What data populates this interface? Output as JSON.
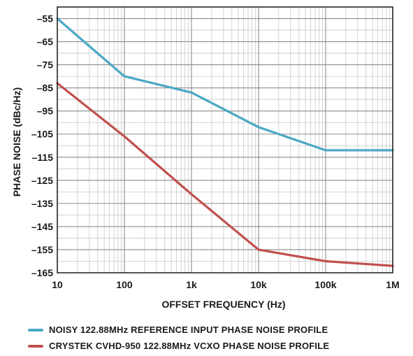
{
  "chart_data": {
    "type": "line",
    "xscale": "log",
    "xlabel": "OFFSET FREQUENCY (Hz)",
    "ylabel": "PHASE NOISE (dBc/Hz)",
    "xlim": [
      10,
      1000000
    ],
    "ylim": [
      -165,
      -50
    ],
    "x_ticks": [
      {
        "value": 10,
        "label": "10"
      },
      {
        "value": 100,
        "label": "100"
      },
      {
        "value": 1000,
        "label": "1k"
      },
      {
        "value": 10000,
        "label": "10k"
      },
      {
        "value": 100000,
        "label": "100k"
      },
      {
        "value": 1000000,
        "label": "1M"
      }
    ],
    "y_ticks": [
      -55,
      -65,
      -75,
      -85,
      -95,
      -105,
      -115,
      -125,
      -135,
      -145,
      -155,
      -165
    ],
    "y_tick_labels": [
      "–55",
      "–65",
      "–75",
      "–85",
      "–95",
      "–105",
      "–115",
      "–125",
      "–135",
      "–145",
      "–155",
      "–165"
    ],
    "grid": true,
    "legend_position": "bottom",
    "series": [
      {
        "name": "NOISY 122.88MHz REFERENCE INPUT PHASE NOISE PROFILE",
        "color": "#4aa8c4",
        "x": [
          10,
          100,
          1000,
          10000,
          100000,
          1000000
        ],
        "y": [
          -55,
          -80,
          -87,
          -102,
          -112,
          -112
        ]
      },
      {
        "name": "CRYSTEK CVHD-950 122.88MHz VCXO PHASE NOISE PROFILE",
        "color": "#c0504d",
        "x": [
          10,
          100,
          1000,
          10000,
          100000,
          1000000
        ],
        "y": [
          -83,
          -106,
          -131,
          -155,
          -160,
          -162
        ]
      }
    ]
  }
}
